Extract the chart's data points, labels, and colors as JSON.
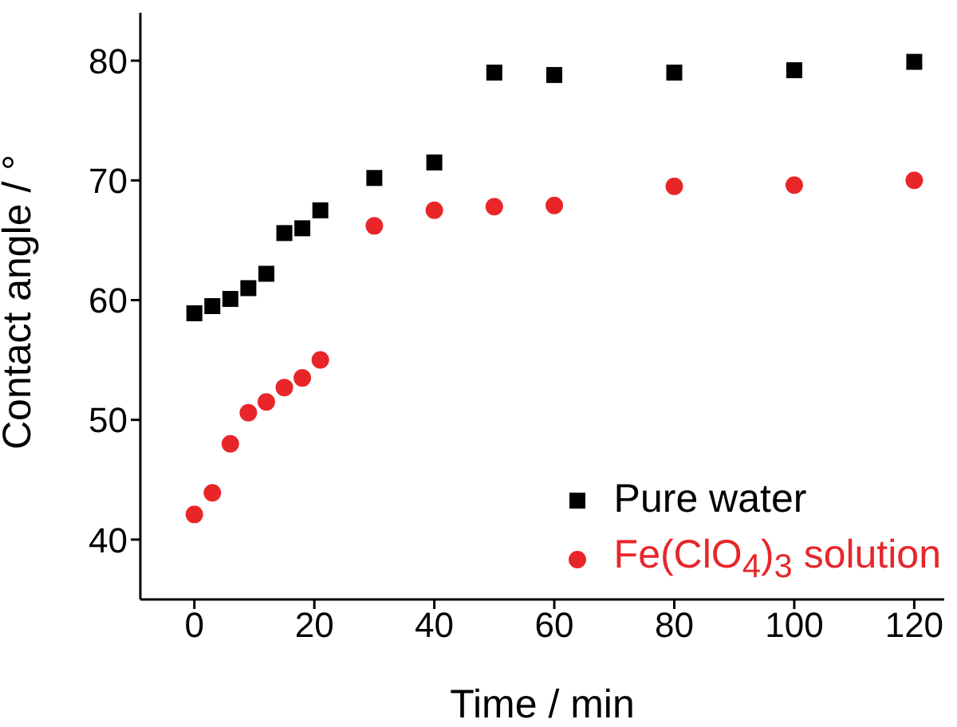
{
  "chart_data": {
    "type": "scatter",
    "xlabel": "Time / min",
    "ylabel": "Contact angle / °",
    "xlim": [
      -9,
      125
    ],
    "xticks": [
      0,
      20,
      40,
      60,
      80,
      100,
      120
    ],
    "ylim": [
      35,
      84
    ],
    "yticks": [
      40,
      50,
      60,
      70,
      80
    ],
    "grid": false,
    "legend": "bottom right",
    "series": [
      {
        "name": "Pure water",
        "color": "#000000",
        "marker": "square",
        "x": [
          0,
          3,
          6,
          9,
          12,
          15,
          18,
          21,
          30,
          40,
          50,
          60,
          80,
          100,
          120
        ],
        "values": [
          58.9,
          59.5,
          60.1,
          61.0,
          62.2,
          65.6,
          66.0,
          67.5,
          70.2,
          71.5,
          79.0,
          78.8,
          79.0,
          79.2,
          79.9
        ]
      },
      {
        "name": "Fe(ClO$_{4}$)$_{3}$ solution",
        "color": "#e8262a",
        "marker": "circle",
        "x": [
          0,
          3,
          6,
          9,
          12,
          15,
          18,
          21,
          30,
          40,
          50,
          60,
          80,
          100,
          120
        ],
        "values": [
          42.1,
          43.9,
          48.0,
          50.6,
          51.5,
          52.7,
          53.5,
          55.0,
          66.2,
          67.5,
          67.8,
          67.9,
          69.5,
          69.6,
          70.0
        ]
      }
    ]
  }
}
